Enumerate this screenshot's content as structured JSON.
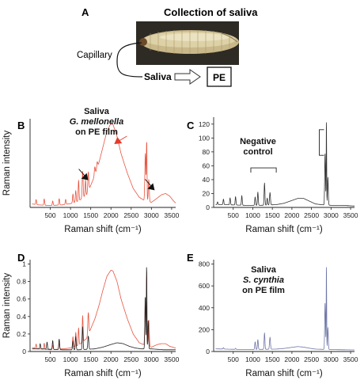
{
  "panel_a": {
    "letter": "A",
    "title": "Collection of saliva",
    "capillary_label": "Capillary",
    "saliva_label": "Saliva",
    "pe_label": "PE"
  },
  "colors": {
    "saliva_g_mellonella": "#e8543f",
    "negative_control": "#333333",
    "saliva_s_cynthia": "#6f76a8",
    "arrow_red": "#e33b2c",
    "arrow_black": "#111111"
  },
  "chart_data": [
    {
      "id": "B",
      "type": "line",
      "letter": "B",
      "annotation_lines": [
        "Saliva",
        "G. mellonella",
        "on PE film"
      ],
      "xlabel": "Raman shift (cm⁻¹)",
      "ylabel": "Raman intensity",
      "xlim": [
        0,
        3600
      ],
      "x_ticks": [
        500,
        1000,
        1500,
        2000,
        2500,
        3000,
        3500
      ],
      "y_ticks": [],
      "ylim": [
        0,
        140
      ],
      "series": [
        {
          "color": "#e8543f",
          "baseline": [
            [
              0,
              6
            ],
            [
              200,
              4
            ],
            [
              500,
              3
            ],
            [
              800,
              4
            ],
            [
              1000,
              6
            ],
            [
              1200,
              10
            ],
            [
              1400,
              20
            ],
            [
              1500,
              35
            ],
            [
              1600,
              50
            ],
            [
              1700,
              70
            ],
            [
              1800,
              95
            ],
            [
              1900,
              120
            ],
            [
              2000,
              133
            ],
            [
              2050,
              131
            ],
            [
              2150,
              112
            ],
            [
              2250,
              85
            ],
            [
              2400,
              55
            ],
            [
              2550,
              30
            ],
            [
              2700,
              16
            ],
            [
              2850,
              10
            ],
            [
              3000,
              8
            ],
            [
              3150,
              15
            ],
            [
              3250,
              20
            ],
            [
              3350,
              22
            ],
            [
              3450,
              18
            ],
            [
              3550,
              10
            ],
            [
              3600,
              7
            ]
          ],
          "peaks": [
            [
              150,
              8,
              10
            ],
            [
              350,
              10,
              10
            ],
            [
              560,
              7,
              10
            ],
            [
              720,
              10,
              10
            ],
            [
              880,
              8,
              10
            ],
            [
              1060,
              14,
              10
            ],
            [
              1130,
              18,
              10
            ],
            [
              1200,
              33,
              10
            ],
            [
              1300,
              42,
              12
            ],
            [
              1370,
              25,
              10
            ],
            [
              1440,
              30,
              12
            ],
            [
              1600,
              14,
              12
            ],
            [
              1660,
              10,
              12
            ],
            [
              2850,
              75,
              12
            ],
            [
              2883,
              95,
              8
            ],
            [
              2935,
              35,
              12
            ]
          ]
        }
      ],
      "arrows": [
        {
          "color": "red",
          "tip": [
            2080,
            100
          ]
        },
        {
          "color": "black",
          "tip": [
            1440,
            43
          ]
        },
        {
          "color": "black",
          "tip": [
            3080,
            27
          ]
        }
      ]
    },
    {
      "id": "C",
      "type": "line",
      "letter": "C",
      "annotation_lines": [
        "Negative",
        "control"
      ],
      "xlabel": "Raman shift (cm⁻¹)",
      "ylabel": "",
      "xlim": [
        0,
        3600
      ],
      "x_ticks": [
        500,
        1000,
        1500,
        2000,
        2500,
        3000,
        3500
      ],
      "ylim": [
        0,
        130
      ],
      "y_ticks": [
        0,
        20,
        40,
        60,
        80,
        100,
        120
      ],
      "series": [
        {
          "color": "#333333",
          "baseline": [
            [
              0,
              4
            ],
            [
              300,
              4
            ],
            [
              800,
              3
            ],
            [
              1200,
              3
            ],
            [
              1600,
              4
            ],
            [
              1800,
              6
            ],
            [
              2000,
              10
            ],
            [
              2150,
              13
            ],
            [
              2300,
              13
            ],
            [
              2450,
              9
            ],
            [
              2600,
              5
            ],
            [
              2750,
              4
            ],
            [
              3000,
              3
            ],
            [
              3300,
              3
            ],
            [
              3600,
              2
            ]
          ],
          "peaks": [
            [
              100,
              4,
              10
            ],
            [
              250,
              8,
              10
            ],
            [
              420,
              10,
              10
            ],
            [
              560,
              12,
              10
            ],
            [
              720,
              14,
              10
            ],
            [
              1060,
              12,
              10
            ],
            [
              1130,
              19,
              10
            ],
            [
              1300,
              32,
              10
            ],
            [
              1370,
              10,
              10
            ],
            [
              1440,
              18,
              12
            ],
            [
              2848,
              75,
              10
            ],
            [
              2882,
              125,
              6
            ],
            [
              2920,
              40,
              10
            ]
          ]
        }
      ],
      "brackets": [
        {
          "from": 950,
          "to": 1600,
          "y": 57,
          "orient": "horizontal"
        },
        {
          "from": 75,
          "to": 112,
          "x": 2700,
          "orient": "vertical"
        }
      ]
    },
    {
      "id": "D",
      "type": "line",
      "letter": "D",
      "xlabel": "Raman shift (cm⁻¹)",
      "ylabel": "Raman intensity",
      "xlim": [
        0,
        3600
      ],
      "x_ticks": [
        500,
        1000,
        1500,
        2000,
        2500,
        3000,
        3500
      ],
      "ylim": [
        0,
        1.05
      ],
      "y_ticks": [
        0,
        0.2,
        0.4,
        0.6,
        0.8,
        1
      ],
      "y_tick_labels": [
        "0",
        "0.2",
        "0.4",
        "0.6",
        "0.8",
        "1"
      ],
      "series": [
        {
          "color": "#e8543f",
          "baseline": [
            [
              0,
              0.05
            ],
            [
              200,
              0.03
            ],
            [
              500,
              0.02
            ],
            [
              800,
              0.03
            ],
            [
              1000,
              0.04
            ],
            [
              1200,
              0.07
            ],
            [
              1400,
              0.15
            ],
            [
              1500,
              0.26
            ],
            [
              1600,
              0.37
            ],
            [
              1700,
              0.52
            ],
            [
              1800,
              0.7
            ],
            [
              1900,
              0.86
            ],
            [
              2000,
              0.93
            ],
            [
              2050,
              0.92
            ],
            [
              2150,
              0.8
            ],
            [
              2250,
              0.6
            ],
            [
              2400,
              0.38
            ],
            [
              2550,
              0.2
            ],
            [
              2700,
              0.1
            ],
            [
              2850,
              0.07
            ],
            [
              3000,
              0.05
            ],
            [
              3150,
              0.08
            ],
            [
              3250,
              0.09
            ],
            [
              3350,
              0.09
            ],
            [
              3450,
              0.06
            ],
            [
              3600,
              0.04
            ]
          ],
          "peaks": [
            [
              150,
              0.05,
              10
            ],
            [
              350,
              0.07,
              10
            ],
            [
              560,
              0.05,
              10
            ],
            [
              720,
              0.07,
              10
            ],
            [
              1060,
              0.12,
              10
            ],
            [
              1130,
              0.16,
              10
            ],
            [
              1200,
              0.2,
              10
            ],
            [
              1300,
              0.3,
              10
            ],
            [
              1440,
              0.25,
              12
            ],
            [
              2850,
              0.5,
              12
            ],
            [
              2883,
              0.82,
              7
            ],
            [
              2935,
              0.3,
              12
            ]
          ]
        },
        {
          "color": "#222222",
          "baseline": [
            [
              0,
              0.03
            ],
            [
              300,
              0.03
            ],
            [
              800,
              0.02
            ],
            [
              1200,
              0.02
            ],
            [
              1600,
              0.03
            ],
            [
              1800,
              0.05
            ],
            [
              2000,
              0.08
            ],
            [
              2150,
              0.1
            ],
            [
              2300,
              0.09
            ],
            [
              2450,
              0.06
            ],
            [
              2600,
              0.04
            ],
            [
              2750,
              0.03
            ],
            [
              3000,
              0.03
            ],
            [
              3300,
              0.02
            ],
            [
              3600,
              0.02
            ]
          ],
          "peaks": [
            [
              250,
              0.06,
              10
            ],
            [
              420,
              0.08,
              10
            ],
            [
              560,
              0.1,
              10
            ],
            [
              720,
              0.12,
              10
            ],
            [
              1060,
              0.1,
              10
            ],
            [
              1130,
              0.15,
              10
            ],
            [
              1300,
              0.26,
              10
            ],
            [
              1440,
              0.15,
              12
            ],
            [
              2848,
              0.6,
              10
            ],
            [
              2882,
              0.98,
              6
            ],
            [
              2920,
              0.32,
              10
            ]
          ]
        }
      ]
    },
    {
      "id": "E",
      "type": "line",
      "letter": "E",
      "annotation_lines": [
        "Saliva",
        "S. cynthia",
        "on PE film"
      ],
      "xlabel": "Raman shift (cm⁻¹)",
      "ylabel": "",
      "xlim": [
        0,
        3600
      ],
      "x_ticks": [
        500,
        1000,
        1500,
        2000,
        2500,
        3000,
        3500
      ],
      "ylim": [
        0,
        840
      ],
      "y_ticks": [
        0,
        200,
        400,
        600,
        800
      ],
      "series": [
        {
          "color": "#6f76a8",
          "baseline": [
            [
              0,
              25
            ],
            [
              300,
              22
            ],
            [
              700,
              18
            ],
            [
              1000,
              18
            ],
            [
              1300,
              20
            ],
            [
              1600,
              22
            ],
            [
              1800,
              28
            ],
            [
              2000,
              38
            ],
            [
              2150,
              45
            ],
            [
              2300,
              40
            ],
            [
              2450,
              30
            ],
            [
              2600,
              22
            ],
            [
              2750,
              20
            ],
            [
              3000,
              18
            ],
            [
              3300,
              16
            ],
            [
              3600,
              14
            ]
          ],
          "peaks": [
            [
              250,
              12,
              10
            ],
            [
              560,
              10,
              10
            ],
            [
              1060,
              70,
              10
            ],
            [
              1130,
              90,
              10
            ],
            [
              1300,
              150,
              10
            ],
            [
              1440,
              110,
              12
            ],
            [
              2848,
              430,
              10
            ],
            [
              2882,
              790,
              6
            ],
            [
              2920,
              200,
              10
            ]
          ]
        }
      ]
    }
  ]
}
